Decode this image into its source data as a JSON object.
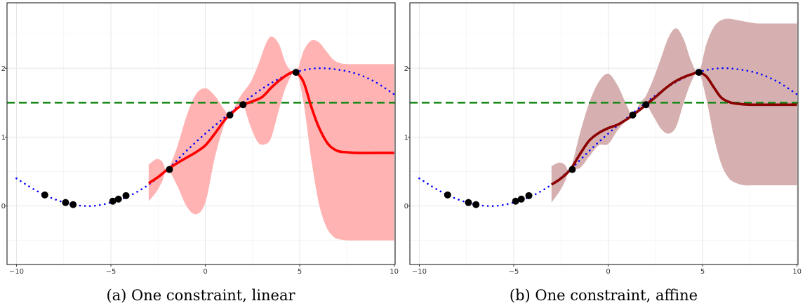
{
  "colors": {
    "true_curve": "#0000ff",
    "threshold": "#1a8a1a",
    "points": "#000000",
    "panel_a_fill": "#ffb3b3",
    "panel_a_mean": "#ff0000",
    "panel_b_fill": "#d6b0b0",
    "panel_b_mean": "#8b0000"
  },
  "chart_data": [
    {
      "type": "line",
      "caption": "(a) One constraint, linear",
      "xlim": [
        -10.5,
        10.05
      ],
      "ylim": [
        -0.85,
        2.95
      ],
      "x_ticks": [
        -10,
        -5,
        0,
        5,
        10
      ],
      "x_tick_labels": [
        "−10",
        "−5",
        "0",
        "5",
        "10"
      ],
      "y_ticks": [
        0,
        1,
        2
      ],
      "y_tick_labels": [
        "0",
        "1",
        "2"
      ],
      "grid": true,
      "threshold": 1.5,
      "true_curve": {
        "x": [
          -10,
          -9,
          -8,
          -7,
          -6,
          -5,
          -4,
          -3,
          -2,
          -1,
          0,
          1,
          2,
          3,
          4,
          5,
          6,
          7,
          8,
          9,
          10
        ],
        "y": [
          0.4,
          0.23,
          0.1,
          0.02,
          0.0,
          0.05,
          0.15,
          0.31,
          0.53,
          0.8,
          1.05,
          1.28,
          1.5,
          1.7,
          1.86,
          1.96,
          2.0,
          1.98,
          1.92,
          1.8,
          1.62
        ]
      },
      "observations": {
        "x": [
          -8.5,
          -7.4,
          -7.0,
          -4.9,
          -4.6,
          -4.2,
          -1.9,
          1.3,
          2.0,
          4.8
        ],
        "y": [
          0.16,
          0.05,
          0.02,
          0.07,
          0.1,
          0.15,
          0.53,
          1.32,
          1.47,
          1.94
        ]
      },
      "posterior_mean": {
        "x": [
          -3,
          -2.5,
          -2,
          -1.5,
          -1,
          -0.5,
          0,
          0.5,
          1,
          1.3,
          1.7,
          2,
          2.5,
          3,
          3.5,
          4,
          4.5,
          4.8,
          5.2,
          5.6,
          6,
          6.5,
          7,
          7.5,
          8,
          9,
          10
        ],
        "y": [
          0.33,
          0.42,
          0.53,
          0.62,
          0.7,
          0.78,
          0.88,
          1.05,
          1.24,
          1.32,
          1.42,
          1.47,
          1.52,
          1.58,
          1.72,
          1.84,
          1.93,
          1.94,
          1.8,
          1.45,
          1.15,
          0.9,
          0.8,
          0.78,
          0.77,
          0.77,
          0.77
        ]
      },
      "band": {
        "x": [
          -3,
          -2.6,
          -2.3,
          -2,
          -1.5,
          -1,
          -0.5,
          0,
          0.5,
          1,
          1.3,
          1.7,
          2,
          2.4,
          2.8,
          3.2,
          3.5,
          3.9,
          4.3,
          4.8,
          5.2,
          5.6,
          6,
          6.4,
          6.8,
          7.2,
          7.6,
          8,
          9,
          10
        ],
        "upper": [
          0.6,
          0.68,
          0.65,
          0.53,
          0.85,
          1.3,
          1.62,
          1.71,
          1.6,
          1.4,
          1.32,
          1.52,
          1.65,
          1.8,
          2.05,
          2.35,
          2.46,
          2.35,
          2.05,
          1.94,
          2.25,
          2.4,
          2.38,
          2.25,
          2.12,
          2.07,
          2.06,
          2.06,
          2.06,
          2.06
        ],
        "lower": [
          0.07,
          0.2,
          0.35,
          0.53,
          0.3,
          0.0,
          -0.12,
          0.05,
          0.7,
          1.18,
          1.32,
          1.45,
          1.47,
          1.15,
          0.92,
          0.9,
          1.0,
          1.4,
          1.75,
          1.94,
          1.5,
          0.7,
          0.05,
          -0.3,
          -0.45,
          -0.49,
          -0.5,
          -0.5,
          -0.5,
          -0.5
        ]
      }
    },
    {
      "type": "line",
      "caption": "(b) One constraint, affine",
      "xlim": [
        -10.5,
        10.05
      ],
      "ylim": [
        -0.85,
        2.95
      ],
      "x_ticks": [
        -10,
        -5,
        0,
        5,
        10
      ],
      "x_tick_labels": [
        "−10",
        "−5",
        "0",
        "5",
        "10"
      ],
      "y_ticks": [
        0,
        1,
        2
      ],
      "y_tick_labels": [
        "0",
        "1",
        "2"
      ],
      "grid": true,
      "threshold": 1.5,
      "true_curve": {
        "x": [
          -10,
          -9,
          -8,
          -7,
          -6,
          -5,
          -4,
          -3,
          -2,
          -1,
          0,
          1,
          2,
          3,
          4,
          5,
          6,
          7,
          8,
          9,
          10
        ],
        "y": [
          0.4,
          0.23,
          0.1,
          0.02,
          0.0,
          0.05,
          0.15,
          0.31,
          0.53,
          0.8,
          1.05,
          1.28,
          1.5,
          1.7,
          1.86,
          1.96,
          2.0,
          1.98,
          1.92,
          1.8,
          1.62
        ]
      },
      "observations": {
        "x": [
          -8.5,
          -7.4,
          -7.0,
          -4.9,
          -4.6,
          -4.2,
          -1.9,
          1.3,
          2.0,
          4.8
        ],
        "y": [
          0.16,
          0.05,
          0.02,
          0.07,
          0.1,
          0.15,
          0.53,
          1.32,
          1.47,
          1.94
        ]
      },
      "posterior_mean": {
        "x": [
          -3,
          -2.5,
          -2,
          -1.5,
          -1,
          -0.5,
          0,
          0.5,
          1,
          1.3,
          1.7,
          2,
          2.5,
          3,
          3.5,
          4,
          4.5,
          4.8,
          5.2,
          5.6,
          6,
          6.5,
          7,
          7.5,
          8,
          9,
          10
        ],
        "y": [
          0.31,
          0.4,
          0.53,
          0.75,
          0.95,
          1.06,
          1.13,
          1.18,
          1.26,
          1.32,
          1.4,
          1.47,
          1.58,
          1.7,
          1.8,
          1.87,
          1.92,
          1.94,
          1.88,
          1.72,
          1.57,
          1.5,
          1.48,
          1.47,
          1.47,
          1.47,
          1.47
        ]
      },
      "band": {
        "x": [
          -3,
          -2.6,
          -2.3,
          -2,
          -1.5,
          -1,
          -0.5,
          0,
          0.5,
          1,
          1.3,
          1.7,
          2,
          2.4,
          2.8,
          3.2,
          3.6,
          4,
          4.4,
          4.8,
          5.2,
          5.6,
          6,
          6.4,
          6.8,
          7.2,
          7.6,
          8,
          9,
          10
        ],
        "upper": [
          0.58,
          0.63,
          0.6,
          0.53,
          1.05,
          1.5,
          1.8,
          1.92,
          1.75,
          1.45,
          1.32,
          1.5,
          1.6,
          1.85,
          2.15,
          2.45,
          2.58,
          2.42,
          2.1,
          1.94,
          2.35,
          2.6,
          2.7,
          2.72,
          2.7,
          2.68,
          2.66,
          2.65,
          2.65,
          2.65
        ],
        "lower": [
          0.05,
          0.2,
          0.35,
          0.53,
          0.55,
          0.72,
          0.88,
          0.9,
          1.1,
          1.25,
          1.32,
          1.42,
          1.47,
          1.3,
          1.12,
          1.05,
          1.15,
          1.5,
          1.8,
          1.94,
          1.55,
          1.0,
          0.6,
          0.4,
          0.33,
          0.3,
          0.3,
          0.3,
          0.3,
          0.3
        ]
      }
    }
  ]
}
